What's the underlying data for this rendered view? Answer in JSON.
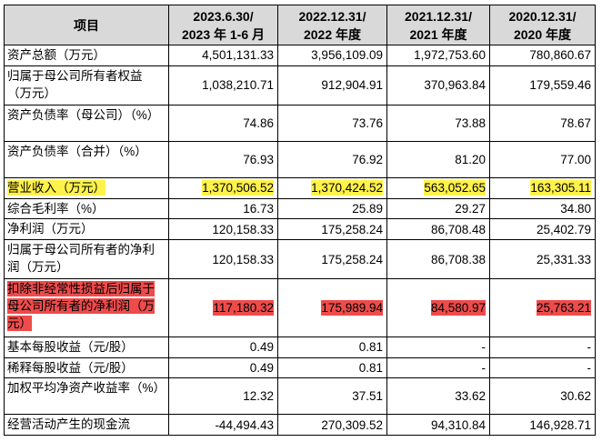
{
  "headers": [
    {
      "line1": "项目",
      "line2": ""
    },
    {
      "line1": "2023.6.30/",
      "line2": "2023 年 1-6 月"
    },
    {
      "line1": "2022.12.31/",
      "line2": "2022 年度"
    },
    {
      "line1": "2021.12.31/",
      "line2": "2021 年度"
    },
    {
      "line1": "2020.12.31/",
      "line2": "2020 年度"
    }
  ],
  "rows": [
    {
      "label": "资产总额（万元）",
      "values": [
        "4,501,131.33",
        "3,956,109.09",
        "1,972,753.60",
        "780,860.67"
      ],
      "tall": false,
      "highlight": ""
    },
    {
      "label": "归属于母公司所有者权益（万元）",
      "values": [
        "1,038,210.71",
        "912,904.91",
        "370,963.84",
        "179,559.46"
      ],
      "tall": true,
      "highlight": ""
    },
    {
      "label": "资产负债率（母公司）（%）",
      "values": [
        "74.86",
        "73.76",
        "73.88",
        "78.67"
      ],
      "tall": true,
      "highlight": ""
    },
    {
      "label": "资产负债率（合并）（%）",
      "values": [
        "76.93",
        "76.92",
        "81.20",
        "77.00"
      ],
      "tall": true,
      "highlight": ""
    },
    {
      "label": "营业收入（万元）",
      "values": [
        "1,370,506.52",
        "1,370,424.52",
        "563,052.65",
        "163,305.11"
      ],
      "tall": false,
      "highlight": "yellow"
    },
    {
      "label": "综合毛利率（%）",
      "values": [
        "16.73",
        "25.89",
        "29.27",
        "34.80"
      ],
      "tall": false,
      "highlight": ""
    },
    {
      "label": "净利润（万元）",
      "values": [
        "120,158.33",
        "175,258.24",
        "86,708.48",
        "25,402.79"
      ],
      "tall": false,
      "highlight": ""
    },
    {
      "label": "归属于母公司所有者的净利润（万元）",
      "values": [
        "120,158.33",
        "175,258.24",
        "86,708.38",
        "25,331.33"
      ],
      "tall": true,
      "highlight": ""
    },
    {
      "label": "扣除非经常性损益后归属于母公司所有者的净利润（万元）",
      "values": [
        "117,180.32",
        "175,989.94",
        "84,580.97",
        "25,763.21"
      ],
      "tall": "triple",
      "highlight": "red"
    },
    {
      "label": "基本每股收益（元/股）",
      "values": [
        "0.49",
        "0.81",
        "-",
        "-"
      ],
      "tall": false,
      "highlight": ""
    },
    {
      "label": "稀释每股收益（元/股）",
      "values": [
        "0.49",
        "0.81",
        "-",
        "-"
      ],
      "tall": false,
      "highlight": ""
    },
    {
      "label": "加权平均净资产收益率（%）",
      "values": [
        "12.32",
        "37.51",
        "33.62",
        "30.62"
      ],
      "tall": true,
      "highlight": ""
    },
    {
      "label": "经营活动产生的现金流",
      "values": [
        "-44,494.43",
        "270,309.52",
        "94,310.84",
        "146,928.71"
      ],
      "tall": false,
      "highlight": ""
    }
  ]
}
